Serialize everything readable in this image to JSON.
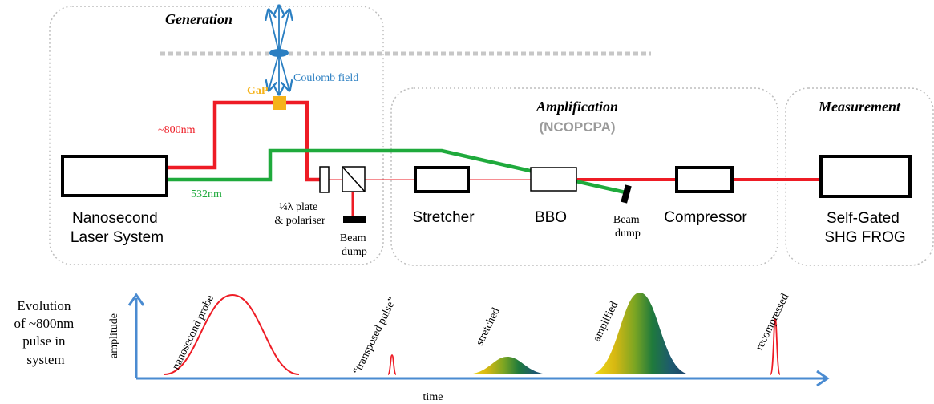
{
  "sections": {
    "generation": "Generation",
    "amplification": "Amplification",
    "amplification_sub": "(NCOPCPA)",
    "measurement": "Measurement"
  },
  "components": {
    "laser": [
      "Nanosecond",
      "Laser System"
    ],
    "gap": "GaP",
    "coulomb": "Coulomb field",
    "wl_red": "~800nm",
    "wl_green": "532nm",
    "waveplate": [
      "¼λ plate",
      "& polariser"
    ],
    "dump1": [
      "Beam",
      "dump"
    ],
    "dump2": [
      "Beam",
      "dump"
    ],
    "stretcher": "Stretcher",
    "bbo": "BBO",
    "compressor": "Compressor",
    "frog": [
      "Self-Gated",
      "SHG FROG"
    ]
  },
  "evolution": {
    "caption": [
      "Evolution",
      "of ~800nm",
      "pulse in",
      "system"
    ],
    "ylabel": "amplitude",
    "xlabel": "time",
    "pulses": {
      "p1": "nanosecond probe",
      "p2": "“transposed pulse”",
      "p3": "stretched",
      "p4": "amplified",
      "p5": "recompressed"
    }
  },
  "colors": {
    "red": "#ee1c25",
    "green": "#1faa3c",
    "blue": "#2b7fc2",
    "gap": "#f5b31a",
    "gray": "#c7c7c7"
  }
}
